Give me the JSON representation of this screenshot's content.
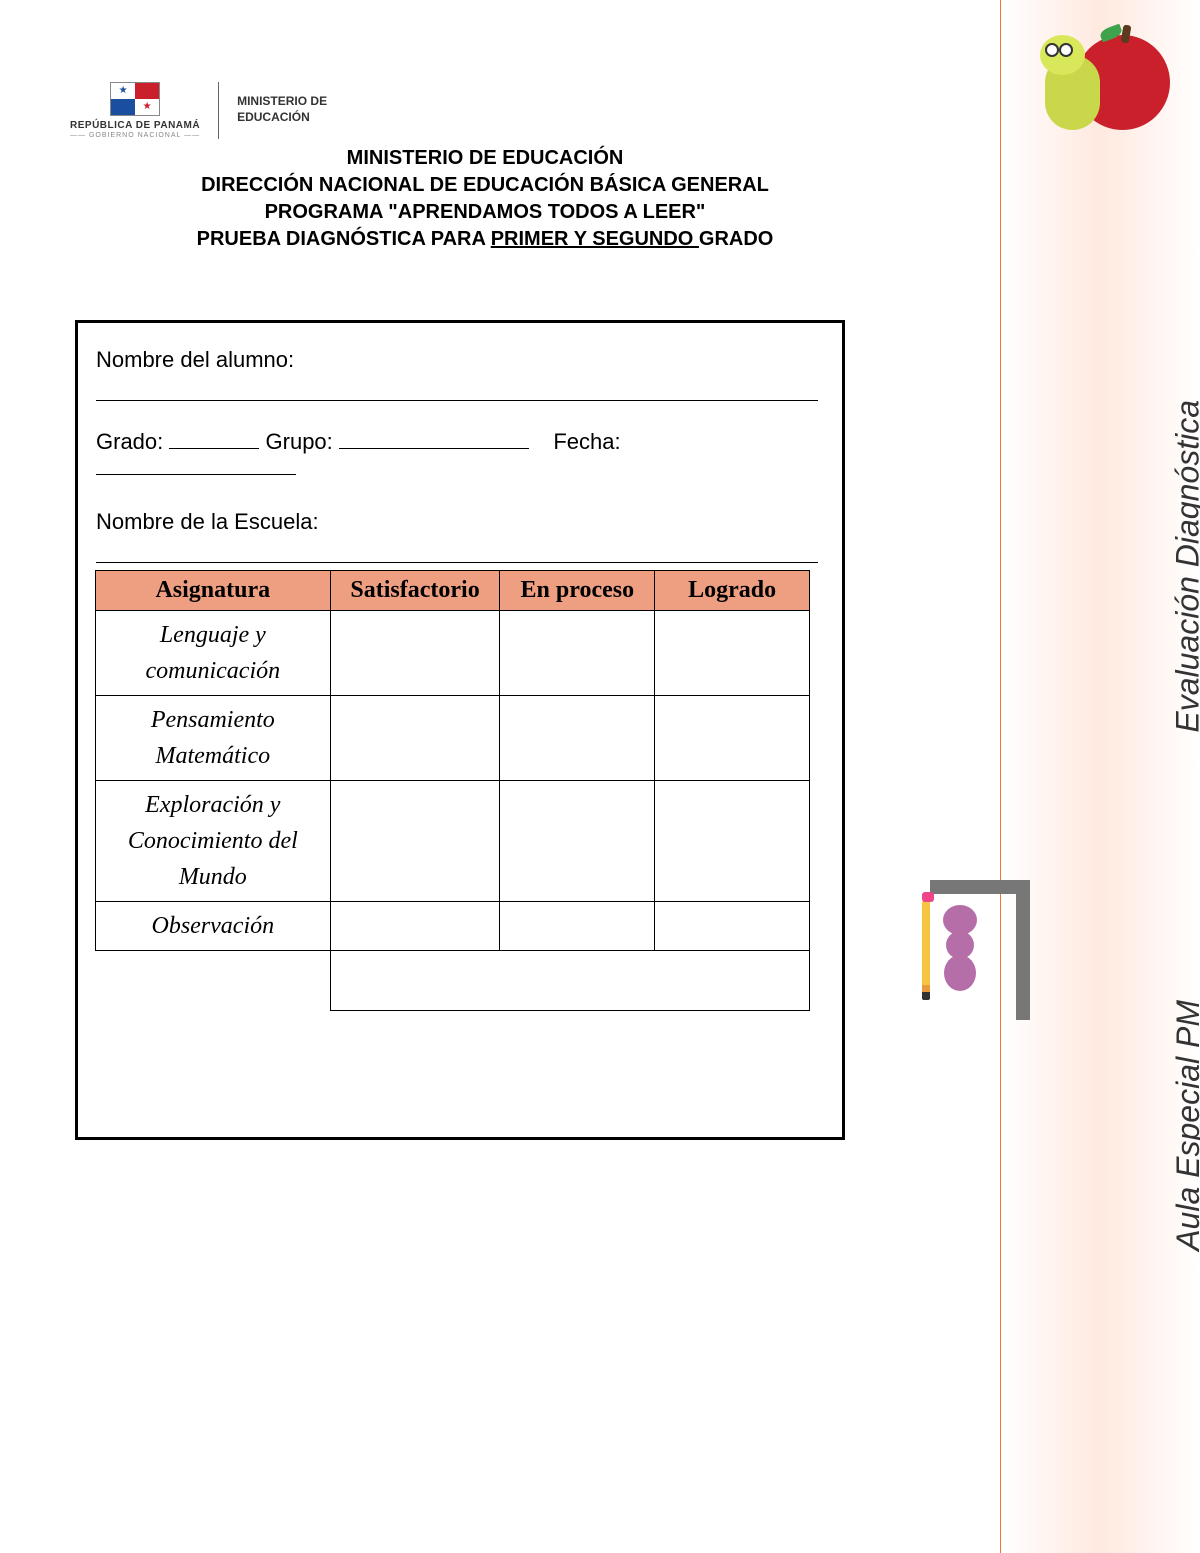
{
  "colors": {
    "header_bg": "#ee9f82",
    "border": "#000000",
    "side_band": "#ffe9df",
    "side_border": "#ff6a3d",
    "apple": "#c9202c",
    "worm": "#c9d84a",
    "ant": "#b56ea8",
    "wall": "#777777",
    "pencil": "#f5c542"
  },
  "header_logo": {
    "country": "REPÚBLICA DE PANAMÁ",
    "subtitle": "—— GOBIERNO NACIONAL ——",
    "ministry_line1": "MINISTERIO DE",
    "ministry_line2": "EDUCACIÓN"
  },
  "title": {
    "line1": "MINISTERIO DE EDUCACIÓN",
    "line2": "DIRECCIÓN NACIONAL DE EDUCACIÓN BÁSICA GENERAL",
    "line3": "PROGRAMA \"APRENDAMOS TODOS A LEER\"",
    "line4_pre": "PRUEBA DIAGNÓSTICA PARA ",
    "line4_ul": "PRIMER Y SEGUNDO ",
    "line4_post": "GRADO"
  },
  "form": {
    "student_label": "Nombre del alumno:",
    "grade_label": "Grado:",
    "group_label": "Grupo:",
    "date_label": "Fecha:",
    "school_label": "Nombre de la Escuela:"
  },
  "table": {
    "headers": {
      "subject": "Asignatura",
      "satisfactory": "Satisfactorio",
      "in_process": "En proceso",
      "achieved": "Logrado"
    },
    "rows": [
      {
        "subject": "Lenguaje y comunicación"
      },
      {
        "subject": "Pensamiento Matemático"
      },
      {
        "subject": "Exploración y Conocimiento del Mundo"
      },
      {
        "subject": "Observación"
      }
    ]
  },
  "sidebar": {
    "text1": "Evaluación Diagnóstica",
    "text2": "Aula Especial PM"
  }
}
